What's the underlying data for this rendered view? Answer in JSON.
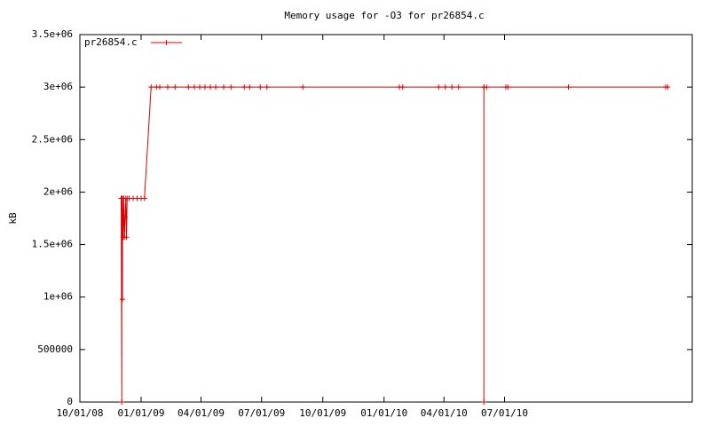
{
  "chart_data": {
    "type": "line",
    "title": "Memory usage for -O3 for pr26854.c",
    "y_label": "kB",
    "x": [
      "12/02/08",
      "12/03/08",
      "12/03/08",
      "12/04/08",
      "12/04/08",
      "12/05/08",
      "12/06/08",
      "12/07/08",
      "12/08/08",
      "12/09/08",
      "12/10/08",
      "12/11/08",
      "12/14/08",
      "12/20/08",
      "12/26/08",
      "01/01/09",
      "01/06/09",
      "01/16/09",
      "01/24/09",
      "01/29/09",
      "02/10/09",
      "02/21/09",
      "03/13/09",
      "03/22/09",
      "03/30/09",
      "04/07/09",
      "04/15/09",
      "04/23/09",
      "05/05/09",
      "05/16/09",
      "06/05/09",
      "06/13/09",
      "06/29/09",
      "07/09/09",
      "09/01/09",
      "01/24/10",
      "01/29/10",
      "03/24/10",
      "04/03/10",
      "04/13/10",
      "04/23/10",
      "05/31/10",
      "05/31/10",
      "05/31/10",
      "06/04/10",
      "07/03/10",
      "07/06/10",
      "10/05/10",
      "02/28/11",
      "03/03/11"
    ],
    "series": [
      {
        "name": "pr26854.c",
        "color": "#e00000",
        "values": [
          1940000,
          0,
          1940000,
          980000,
          1940000,
          1570000,
          1940000,
          1570000,
          1760000,
          1940000,
          1570000,
          1940000,
          1940000,
          1940000,
          1940000,
          1940000,
          1940000,
          3000000,
          3000000,
          3000000,
          3000000,
          3000000,
          3000000,
          3000000,
          3000000,
          3000000,
          3000000,
          3000000,
          3000000,
          3000000,
          3000000,
          3000000,
          3000000,
          3000000,
          3000000,
          3000000,
          3000000,
          3000000,
          3000000,
          3000000,
          3000000,
          3000000,
          0,
          3000000,
          3000000,
          3000000,
          3000000,
          3000000,
          3000000,
          3000000
        ]
      }
    ],
    "xlim": [
      "10/01/08",
      "04/09/11"
    ],
    "xticks": [
      "10/01/08",
      "01/01/09",
      "04/01/09",
      "07/01/09",
      "10/01/09",
      "01/01/10",
      "04/01/10",
      "07/01/10"
    ],
    "ylim": [
      0,
      3500000
    ],
    "yticks": [
      0,
      500000,
      {
        "value": 1000000,
        "label": "1e+06"
      },
      {
        "value": 1500000,
        "label": "1.5e+06"
      },
      {
        "value": 2000000,
        "label": "2e+06"
      },
      {
        "value": 2500000,
        "label": "2.5e+06"
      },
      {
        "value": 3000000,
        "label": "3e+06"
      },
      {
        "value": 3500000,
        "label": "3.5e+06"
      }
    ],
    "grid": false,
    "legend": "top-left"
  }
}
